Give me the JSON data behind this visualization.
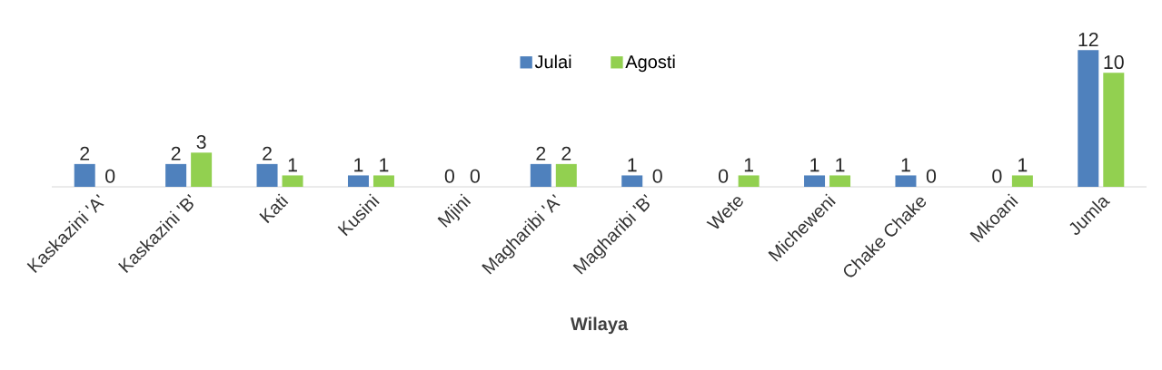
{
  "chart_data": {
    "type": "bar",
    "xlabel": "Wilaya",
    "categories": [
      "Kaskazini 'A'",
      "Kaskazini 'B'",
      "Kati",
      "Kusini",
      "Mjini",
      "Magharibi 'A'",
      "Magharibi 'B'",
      "Wete",
      "Micheweni",
      "Chake Chake",
      "Mkoani",
      "Jumla"
    ],
    "series": [
      {
        "name": "Julai",
        "color": "#4f81bd",
        "values": [
          2,
          2,
          2,
          1,
          0,
          2,
          1,
          0,
          1,
          1,
          0,
          12
        ]
      },
      {
        "name": "Agosti",
        "color": "#92d050",
        "values": [
          0,
          3,
          1,
          1,
          0,
          2,
          0,
          1,
          1,
          0,
          1,
          10
        ]
      }
    ],
    "data_labels": true,
    "legend": "top"
  }
}
